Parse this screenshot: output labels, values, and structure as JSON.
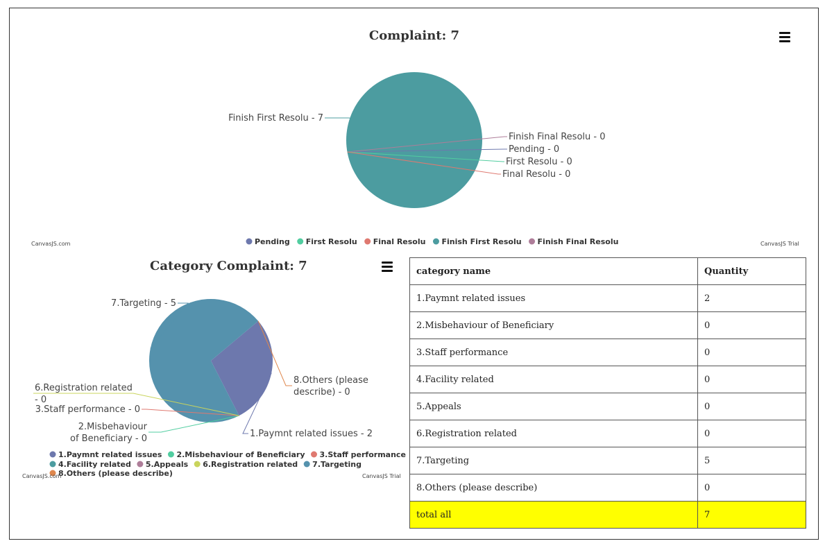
{
  "top_chart": {
    "title": "Complaint: 7",
    "credit_left": "CanvasJS.com",
    "credit_right": "CanvasJS Trial",
    "menu_icon": "hamburger-menu-icon"
  },
  "bottom_chart": {
    "title": "Category Complaint: 7",
    "credit_left": "CanvasJS.com",
    "credit_right": "CanvasJS Trial",
    "menu_icon": "hamburger-menu-icon"
  },
  "table": {
    "headers": [
      "category name",
      "Quantity"
    ],
    "rows": [
      [
        "1.Paymnt related issues",
        "2"
      ],
      [
        "2.Misbehaviour of Beneficiary",
        "0"
      ],
      [
        "3.Staff performance",
        "0"
      ],
      [
        "4.Facility related",
        "0"
      ],
      [
        "5.Appeals",
        "0"
      ],
      [
        "6.Registration related",
        "0"
      ],
      [
        "7.Targeting",
        "5"
      ],
      [
        "8.Others (please describe)",
        "0"
      ]
    ],
    "total_label": "total all",
    "total_value": "7",
    "total_highlight": "#ffff00"
  },
  "chart_data": [
    {
      "type": "pie",
      "title": "Complaint: 7",
      "categories": [
        "Pending",
        "First Resolu",
        "Final Resolu",
        "Finish First Resolu",
        "Finish Final Resolu"
      ],
      "values": [
        0,
        0,
        0,
        7,
        0
      ],
      "colors": [
        "#6d78ad",
        "#51cda0",
        "#df7970",
        "#4c9ca0",
        "#ae7d99"
      ],
      "index_labels": [
        "Pending - 0",
        "First Resolu - 0",
        "Final Resolu - 0",
        "Finish First Resolu - 7",
        "Finish Final Resolu - 0"
      ],
      "legend_position": "bottom"
    },
    {
      "type": "pie",
      "title": "Category Complaint: 7",
      "categories": [
        "1.Paymnt related issues",
        "2.Misbehaviour of Beneficiary",
        "3.Staff performance",
        "4.Facility related",
        "5.Appeals",
        "6.Registration related",
        "7.Targeting",
        "8.Others (please describe)"
      ],
      "values": [
        2,
        0,
        0,
        0,
        0,
        0,
        5,
        0
      ],
      "colors": [
        "#6d78ad",
        "#51cda0",
        "#df7970",
        "#4c9ca0",
        "#ae7d99",
        "#c9d45c",
        "#5592ad",
        "#df874d"
      ],
      "index_labels": [
        "1.Paymnt related issues - 2",
        "2.Misbehaviour of Beneficiary - 0",
        "3.Staff performance - 0",
        "",
        "",
        "6.Registration related - 0",
        "7.Targeting - 5",
        "8.Others (please describe) - 0"
      ],
      "legend_position": "bottom"
    }
  ]
}
